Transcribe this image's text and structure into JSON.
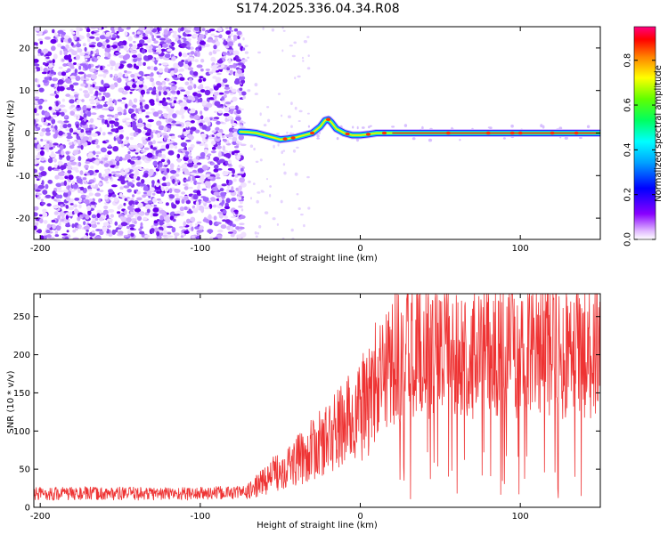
{
  "title": "S174.2025.336.04.34.R08",
  "chart_data": [
    {
      "type": "heatmap",
      "xlabel": "Height of straight line (km)",
      "ylabel": "Frequency (Hz)",
      "xlim": [
        -204,
        150
      ],
      "ylim": [
        -25,
        25
      ],
      "xticks": [
        -200,
        -100,
        0,
        100
      ],
      "yticks": [
        -20,
        -10,
        0,
        10,
        20
      ],
      "noise_region_x": [
        -204,
        -75
      ],
      "signal_track": {
        "x": [
          -75,
          -70,
          -65,
          -60,
          -55,
          -50,
          -45,
          -40,
          -35,
          -30,
          -25,
          -22,
          -20,
          -18,
          -15,
          -10,
          -5,
          0,
          5,
          10,
          15,
          20,
          30,
          50,
          80,
          100,
          120,
          150
        ],
        "y": [
          0.3,
          0.2,
          0.0,
          -0.5,
          -1.0,
          -1.5,
          -1.3,
          -1.0,
          -0.5,
          0.0,
          1.5,
          3.0,
          3.2,
          2.5,
          1.0,
          0.0,
          -0.5,
          -0.5,
          -0.3,
          0.0,
          0.0,
          0.0,
          0.0,
          0.0,
          0.0,
          0.0,
          0.0,
          0.0
        ]
      },
      "colorbar": {
        "label": "Normalized spectral amplitude",
        "range": [
          0.0,
          0.95
        ],
        "ticks": [
          "0.0",
          "0.2",
          "0.4",
          "0.6",
          "0.8"
        ]
      }
    },
    {
      "type": "line",
      "series": [
        {
          "name": "SNR",
          "color": "#ee3333",
          "trend_x": [
            -204,
            -150,
            -100,
            -70,
            -60,
            -50,
            -40,
            -30,
            -20,
            -10,
            0,
            10,
            20,
            30,
            40,
            50,
            70,
            100,
            120,
            150
          ],
          "trend_y": [
            18,
            18,
            18,
            20,
            35,
            50,
            60,
            75,
            90,
            110,
            125,
            160,
            195,
            210,
            212,
            200,
            205,
            210,
            210,
            205
          ]
        }
      ],
      "xlabel": "Height of straight line (km)",
      "ylabel": "SNR (10 * v/v)",
      "xlim": [
        -204,
        150
      ],
      "ylim": [
        0,
        280
      ],
      "xticks": [
        -200,
        -100,
        0,
        100
      ],
      "yticks": [
        0,
        50,
        100,
        150,
        200,
        250
      ]
    }
  ]
}
